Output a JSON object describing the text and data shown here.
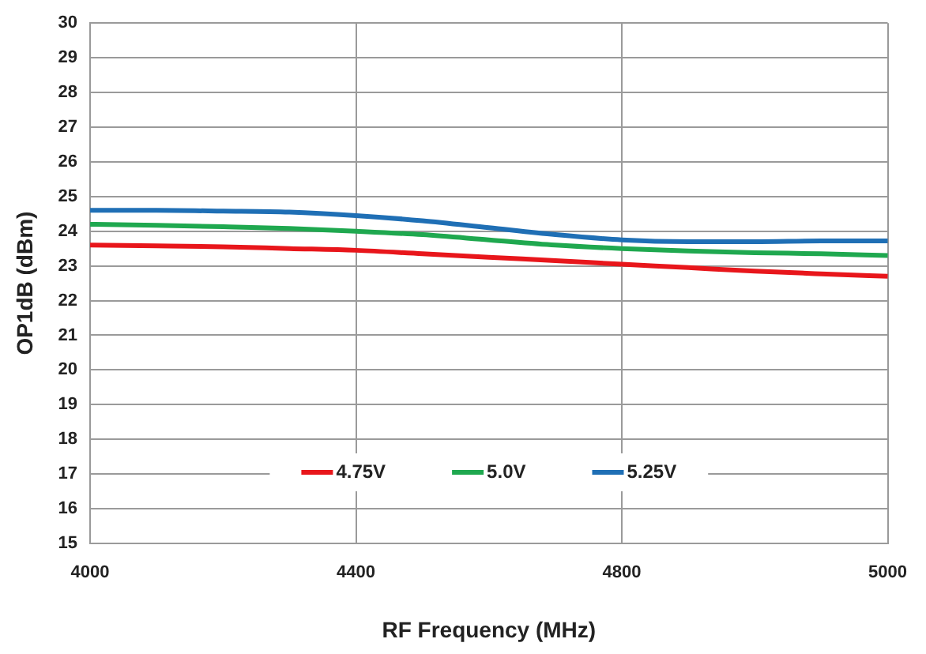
{
  "chart_data": {
    "type": "line",
    "xlabel": "RF Frequency (MHz)",
    "ylabel": "OP1dB (dBm)",
    "categories": [
      "4000",
      null,
      null,
      null,
      "4400",
      null,
      null,
      null,
      "4800",
      null,
      null,
      null,
      "5000"
    ],
    "ylim": [
      15,
      30
    ],
    "yticks": [
      15,
      16,
      17,
      18,
      19,
      20,
      21,
      22,
      23,
      24,
      25,
      26,
      27,
      28,
      29,
      30
    ],
    "grid": true,
    "legend": "bottom",
    "marker": "none",
    "line_style": "solid",
    "series": [
      {
        "name": "4.75V",
        "color": "#e8161b",
        "values": [
          23.6,
          23.58,
          23.55,
          23.5,
          23.45,
          23.35,
          23.25,
          23.15,
          23.05,
          22.95,
          22.85,
          22.77,
          22.7
        ]
      },
      {
        "name": "5.0V",
        "color": "#1fa84f",
        "values": [
          24.2,
          24.17,
          24.13,
          24.08,
          24.0,
          23.9,
          23.75,
          23.6,
          23.5,
          23.43,
          23.38,
          23.35,
          23.3
        ]
      },
      {
        "name": "5.25V",
        "color": "#1f6fb5",
        "values": [
          24.6,
          24.6,
          24.58,
          24.55,
          24.45,
          24.3,
          24.1,
          23.9,
          23.75,
          23.7,
          23.7,
          23.72,
          23.72
        ]
      }
    ]
  }
}
